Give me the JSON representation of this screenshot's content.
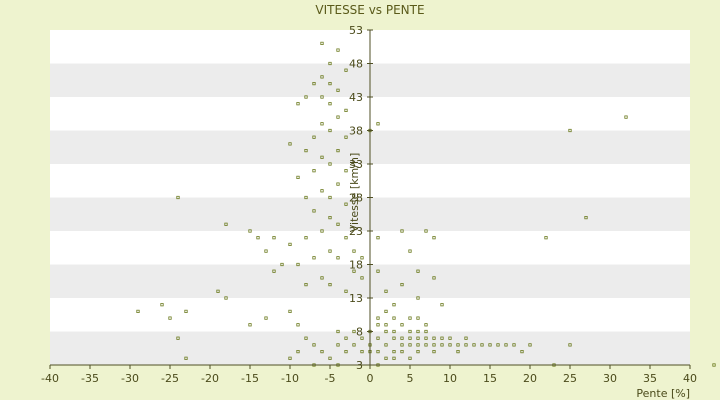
{
  "chart_data": {
    "type": "scatter",
    "title": "VITESSE vs PENTE",
    "xlabel": "Pente [%]",
    "ylabel": "Vitesse [km/h]",
    "xlim": [
      -40,
      40
    ],
    "ylim": [
      3,
      53
    ],
    "xticks": [
      -40,
      -35,
      -30,
      -25,
      -20,
      -15,
      -10,
      -5,
      0,
      5,
      10,
      15,
      20,
      25,
      30,
      35,
      40
    ],
    "yticks": [
      3,
      8,
      13,
      18,
      23,
      28,
      33,
      38,
      43,
      48,
      53
    ],
    "grid": "horizontal bands",
    "legend": "none",
    "colors": {
      "background": "#eef3cf",
      "band_light": "#ffffff",
      "band_dark": "#ececec",
      "marker": "#6b7a1e",
      "axis": "#4f4f25"
    },
    "series": [
      {
        "values": [
          [
            -6,
            51
          ],
          [
            -4,
            50
          ],
          [
            -5,
            48
          ],
          [
            -3,
            47
          ],
          [
            -6,
            46
          ],
          [
            -5,
            45
          ],
          [
            -4,
            44
          ],
          [
            -6,
            43
          ],
          [
            -5,
            42
          ],
          [
            -3,
            41
          ],
          [
            -7,
            45
          ],
          [
            -8,
            43
          ],
          [
            -9,
            42
          ],
          [
            -4,
            40
          ],
          [
            -6,
            39
          ],
          [
            -5,
            38
          ],
          [
            -3,
            37
          ],
          [
            -7,
            37
          ],
          [
            -8,
            35
          ],
          [
            -10,
            36
          ],
          [
            -4,
            35
          ],
          [
            -6,
            34
          ],
          [
            -5,
            33
          ],
          [
            -3,
            32
          ],
          [
            -7,
            32
          ],
          [
            -9,
            31
          ],
          [
            -4,
            30
          ],
          [
            -6,
            29
          ],
          [
            -5,
            28
          ],
          [
            -3,
            27
          ],
          [
            -8,
            28
          ],
          [
            -7,
            26
          ],
          [
            -5,
            25
          ],
          [
            -4,
            24
          ],
          [
            -6,
            23
          ],
          [
            -3,
            22
          ],
          [
            -8,
            22
          ],
          [
            -10,
            21
          ],
          [
            -5,
            20
          ],
          [
            -4,
            19
          ],
          [
            -7,
            19
          ],
          [
            -9,
            18
          ],
          [
            -11,
            18
          ],
          [
            -12,
            17
          ],
          [
            -6,
            16
          ],
          [
            -8,
            15
          ],
          [
            -5,
            15
          ],
          [
            -3,
            14
          ],
          [
            -2,
            20
          ],
          [
            -1,
            19
          ],
          [
            -2,
            17
          ],
          [
            -1,
            16
          ],
          [
            -13,
            20
          ],
          [
            -12,
            22
          ],
          [
            -15,
            23
          ],
          [
            -14,
            22
          ],
          [
            -18,
            24
          ],
          [
            -24,
            28
          ],
          [
            -19,
            14
          ],
          [
            -18,
            13
          ],
          [
            -25,
            10
          ],
          [
            -23,
            11
          ],
          [
            -26,
            12
          ],
          [
            -29,
            11
          ],
          [
            -24,
            7
          ],
          [
            -23,
            4
          ],
          [
            -15,
            9
          ],
          [
            -13,
            10
          ],
          [
            -10,
            11
          ],
          [
            -9,
            9
          ],
          [
            -8,
            7
          ],
          [
            -7,
            6
          ],
          [
            -6,
            5
          ],
          [
            -4,
            6
          ],
          [
            -3,
            7
          ],
          [
            -10,
            4
          ],
          [
            -9,
            5
          ],
          [
            -7,
            3
          ],
          [
            -5,
            4
          ],
          [
            -4,
            3
          ],
          [
            -2,
            8
          ],
          [
            -1,
            7
          ],
          [
            -2,
            6
          ],
          [
            -3,
            5
          ],
          [
            -1,
            5
          ],
          [
            -4,
            8
          ],
          [
            0,
            8
          ],
          [
            1,
            9
          ],
          [
            1,
            7
          ],
          [
            2,
            8
          ],
          [
            2,
            6
          ],
          [
            3,
            7
          ],
          [
            3,
            8
          ],
          [
            4,
            7
          ],
          [
            4,
            6
          ],
          [
            5,
            8
          ],
          [
            5,
            7
          ],
          [
            5,
            6
          ],
          [
            6,
            7
          ],
          [
            6,
            8
          ],
          [
            6,
            6
          ],
          [
            7,
            7
          ],
          [
            7,
            6
          ],
          [
            7,
            8
          ],
          [
            8,
            7
          ],
          [
            8,
            6
          ],
          [
            9,
            7
          ],
          [
            9,
            6
          ],
          [
            10,
            6
          ],
          [
            10,
            7
          ],
          [
            11,
            6
          ],
          [
            11,
            5
          ],
          [
            12,
            6
          ],
          [
            12,
            7
          ],
          [
            13,
            6
          ],
          [
            14,
            6
          ],
          [
            15,
            6
          ],
          [
            16,
            6
          ],
          [
            17,
            6
          ],
          [
            18,
            6
          ],
          [
            19,
            5
          ],
          [
            20,
            6
          ],
          [
            3,
            5
          ],
          [
            4,
            5
          ],
          [
            6,
            5
          ],
          [
            8,
            5
          ],
          [
            2,
            9
          ],
          [
            4,
            9
          ],
          [
            3,
            10
          ],
          [
            5,
            10
          ],
          [
            7,
            9
          ],
          [
            6,
            10
          ],
          [
            1,
            5
          ],
          [
            2,
            4
          ],
          [
            1,
            3
          ],
          [
            3,
            4
          ],
          [
            5,
            4
          ],
          [
            0,
            6
          ],
          [
            0,
            5
          ],
          [
            1,
            10
          ],
          [
            1,
            39
          ],
          [
            0,
            38
          ],
          [
            1,
            22
          ],
          [
            4,
            23
          ],
          [
            7,
            23
          ],
          [
            8,
            22
          ],
          [
            5,
            20
          ],
          [
            6,
            17
          ],
          [
            8,
            16
          ],
          [
            4,
            15
          ],
          [
            2,
            14
          ],
          [
            6,
            13
          ],
          [
            9,
            12
          ],
          [
            3,
            12
          ],
          [
            2,
            11
          ],
          [
            1,
            17
          ],
          [
            22,
            22
          ],
          [
            25,
            38
          ],
          [
            27,
            25
          ],
          [
            32,
            40
          ],
          [
            25,
            6
          ],
          [
            23,
            3
          ],
          [
            43,
            3
          ]
        ]
      }
    ]
  }
}
